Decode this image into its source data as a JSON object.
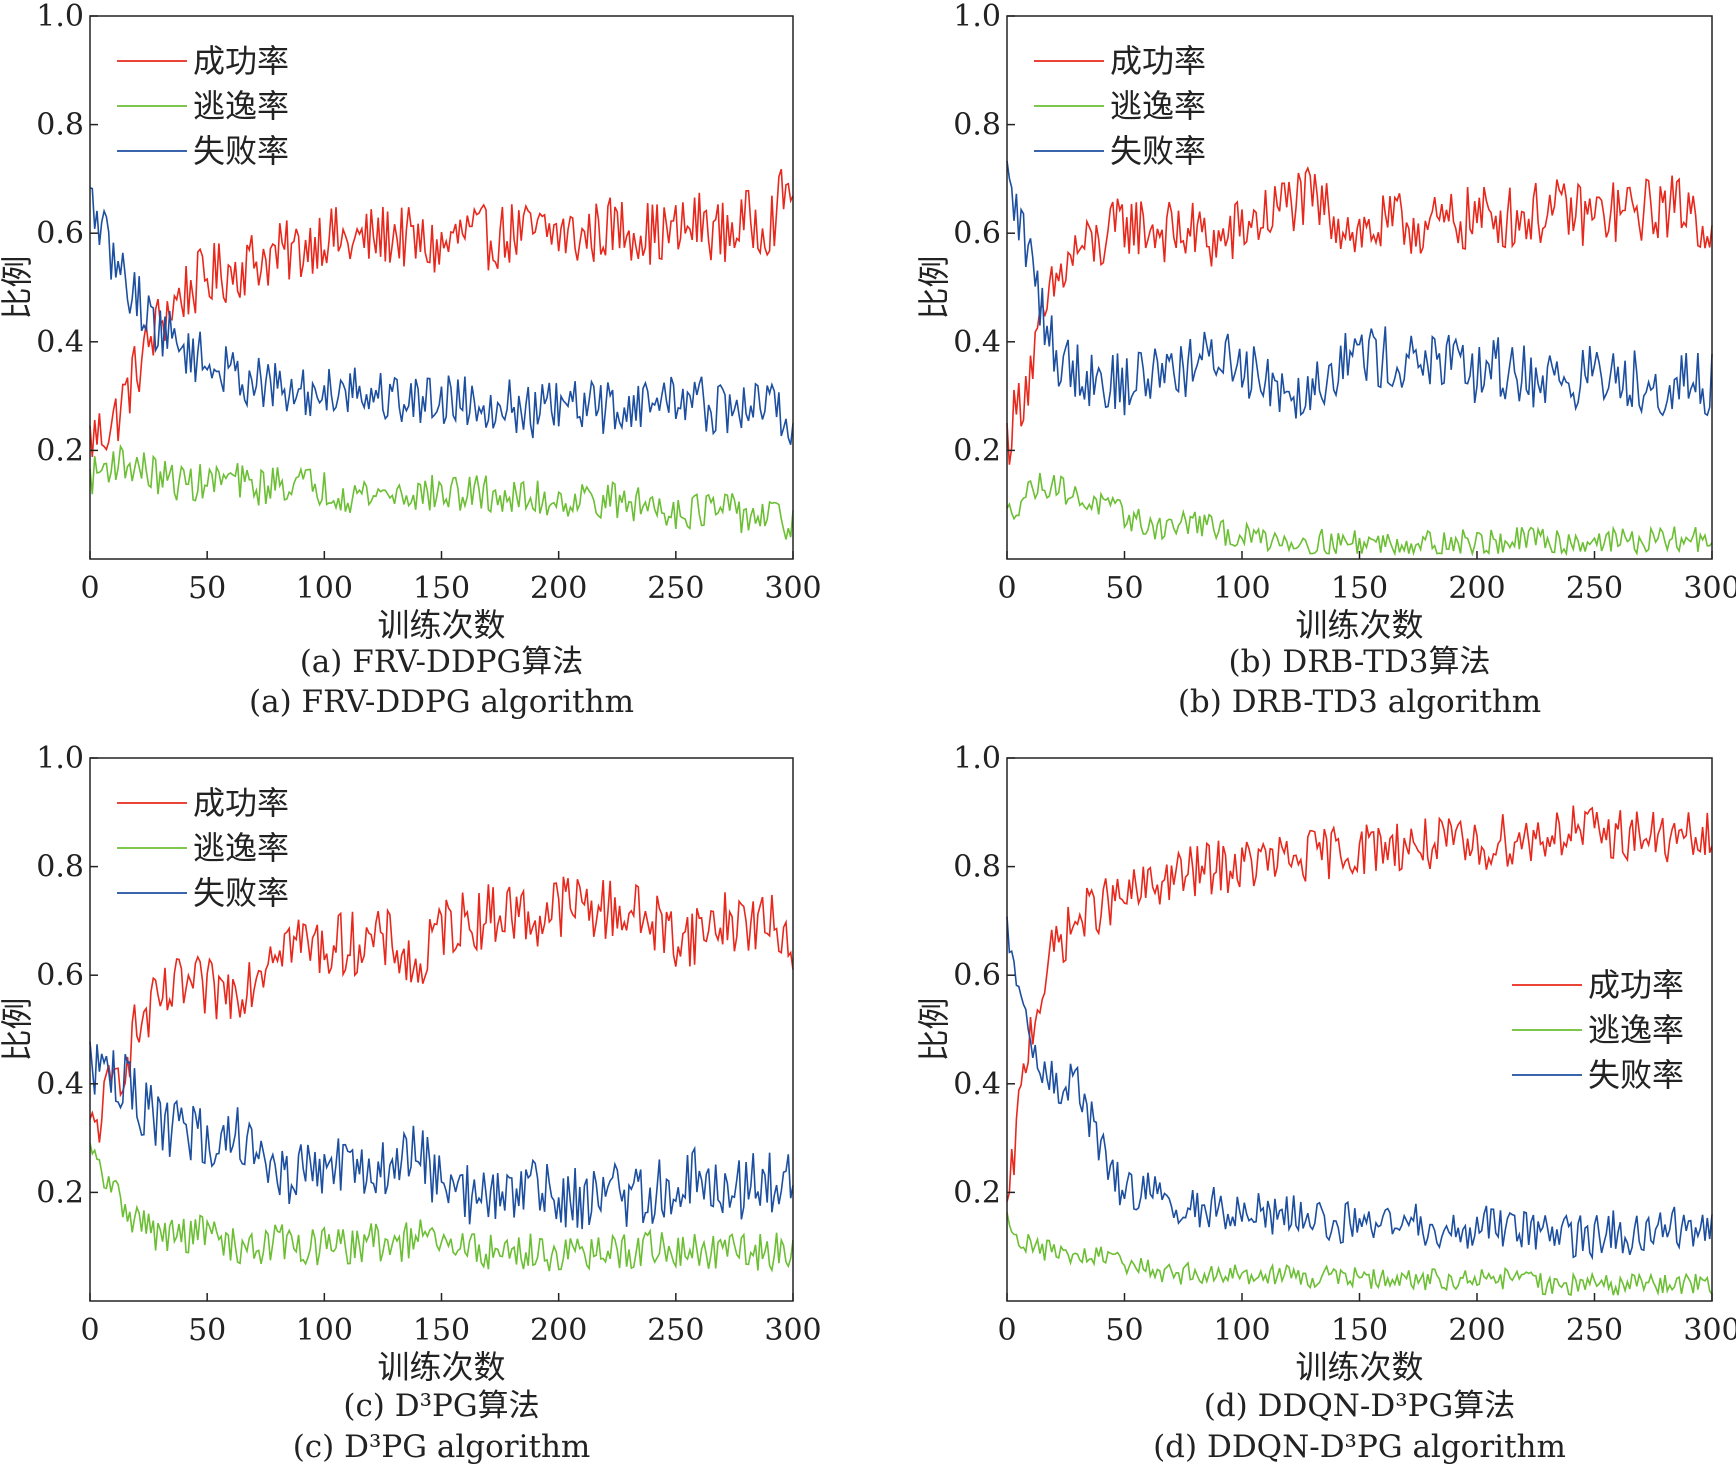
{
  "colors": {
    "success": "#e8281c",
    "escape": "#6cbf34",
    "failure": "#1d4fa0",
    "axis": "#222222"
  },
  "chart_data": [
    {
      "type": "line",
      "caption_cn": "(a) FRV-DDPG算法",
      "caption_en": "(a) FRV-DDPG algorithm",
      "xlabel": "训练次数",
      "ylabel": "比例",
      "xlim": [
        0,
        300
      ],
      "ylim": [
        0,
        1.0
      ],
      "xticks": [
        "0",
        "50",
        "100",
        "150",
        "200",
        "250",
        "300"
      ],
      "yticks": [
        "0.2",
        "0.4",
        "0.6",
        "0.8",
        "1.0"
      ],
      "legend_position": "top-left",
      "series": [
        {
          "name": "成功率",
          "color": "#e8281c",
          "x": [
            0,
            10,
            20,
            30,
            40,
            50,
            60,
            70,
            80,
            90,
            100,
            110,
            120,
            130,
            140,
            150,
            160,
            170,
            180,
            190,
            200,
            210,
            220,
            230,
            240,
            250,
            260,
            270,
            280,
            290,
            300
          ],
          "y": [
            0.22,
            0.25,
            0.35,
            0.44,
            0.49,
            0.52,
            0.53,
            0.55,
            0.56,
            0.57,
            0.6,
            0.58,
            0.59,
            0.6,
            0.58,
            0.57,
            0.6,
            0.59,
            0.6,
            0.6,
            0.6,
            0.59,
            0.61,
            0.61,
            0.6,
            0.6,
            0.62,
            0.6,
            0.62,
            0.62,
            0.7
          ]
        },
        {
          "name": "逃逸率",
          "color": "#6cbf34",
          "x": [
            0,
            10,
            20,
            30,
            40,
            50,
            60,
            70,
            80,
            90,
            100,
            110,
            120,
            130,
            140,
            150,
            160,
            170,
            180,
            190,
            200,
            210,
            220,
            230,
            240,
            250,
            260,
            270,
            280,
            290,
            300
          ],
          "y": [
            0.15,
            0.18,
            0.17,
            0.15,
            0.14,
            0.14,
            0.15,
            0.13,
            0.14,
            0.14,
            0.13,
            0.12,
            0.12,
            0.12,
            0.12,
            0.12,
            0.12,
            0.12,
            0.11,
            0.11,
            0.11,
            0.11,
            0.11,
            0.1,
            0.1,
            0.09,
            0.09,
            0.09,
            0.08,
            0.08,
            0.06
          ]
        },
        {
          "name": "失败率",
          "color": "#1d4fa0",
          "x": [
            0,
            10,
            20,
            30,
            40,
            50,
            60,
            70,
            80,
            90,
            100,
            110,
            120,
            130,
            140,
            150,
            160,
            170,
            180,
            190,
            200,
            210,
            220,
            230,
            240,
            250,
            260,
            270,
            280,
            290,
            300
          ],
          "y": [
            0.66,
            0.55,
            0.48,
            0.42,
            0.39,
            0.36,
            0.34,
            0.33,
            0.31,
            0.3,
            0.31,
            0.32,
            0.3,
            0.3,
            0.29,
            0.3,
            0.29,
            0.29,
            0.28,
            0.27,
            0.28,
            0.28,
            0.28,
            0.28,
            0.29,
            0.3,
            0.29,
            0.27,
            0.28,
            0.29,
            0.24
          ]
        }
      ]
    },
    {
      "type": "line",
      "caption_cn": "(b) DRB-TD3算法",
      "caption_en": "(b) DRB-TD3 algorithm",
      "xlabel": "训练次数",
      "ylabel": "比例",
      "xlim": [
        0,
        300
      ],
      "ylim": [
        0,
        1.0
      ],
      "xticks": [
        "0",
        "50",
        "100",
        "150",
        "200",
        "250",
        "300"
      ],
      "yticks": [
        "0.2",
        "0.4",
        "0.6",
        "0.8",
        "1.0"
      ],
      "legend_position": "top-left",
      "series": [
        {
          "name": "成功率",
          "color": "#e8281c",
          "x": [
            0,
            10,
            20,
            30,
            40,
            50,
            60,
            70,
            80,
            90,
            100,
            110,
            120,
            130,
            140,
            150,
            160,
            170,
            180,
            190,
            200,
            210,
            220,
            230,
            240,
            250,
            260,
            270,
            280,
            290,
            300
          ],
          "y": [
            0.22,
            0.35,
            0.5,
            0.57,
            0.58,
            0.62,
            0.61,
            0.6,
            0.6,
            0.58,
            0.61,
            0.63,
            0.66,
            0.66,
            0.63,
            0.6,
            0.61,
            0.62,
            0.61,
            0.62,
            0.63,
            0.63,
            0.63,
            0.64,
            0.64,
            0.63,
            0.64,
            0.64,
            0.65,
            0.65,
            0.6
          ]
        },
        {
          "name": "逃逸率",
          "color": "#6cbf34",
          "x": [
            0,
            10,
            20,
            30,
            40,
            50,
            60,
            70,
            80,
            90,
            100,
            110,
            120,
            130,
            140,
            150,
            160,
            170,
            180,
            190,
            200,
            210,
            220,
            230,
            240,
            250,
            260,
            270,
            280,
            290,
            300
          ],
          "y": [
            0.08,
            0.13,
            0.14,
            0.11,
            0.1,
            0.08,
            0.06,
            0.06,
            0.07,
            0.05,
            0.04,
            0.04,
            0.035,
            0.03,
            0.03,
            0.03,
            0.03,
            0.03,
            0.03,
            0.03,
            0.03,
            0.03,
            0.035,
            0.035,
            0.03,
            0.035,
            0.035,
            0.03,
            0.035,
            0.035,
            0.04
          ]
        },
        {
          "name": "失败率",
          "color": "#1d4fa0",
          "x": [
            0,
            10,
            20,
            30,
            40,
            50,
            60,
            70,
            80,
            90,
            100,
            110,
            120,
            130,
            140,
            150,
            160,
            170,
            180,
            190,
            200,
            210,
            220,
            230,
            240,
            250,
            260,
            270,
            280,
            290,
            300
          ],
          "y": [
            0.7,
            0.55,
            0.38,
            0.35,
            0.33,
            0.32,
            0.34,
            0.36,
            0.35,
            0.38,
            0.36,
            0.34,
            0.31,
            0.32,
            0.36,
            0.38,
            0.37,
            0.36,
            0.37,
            0.35,
            0.34,
            0.35,
            0.34,
            0.33,
            0.33,
            0.34,
            0.33,
            0.33,
            0.32,
            0.32,
            0.32
          ]
        }
      ]
    },
    {
      "type": "line",
      "caption_cn": "(c) D³PG算法",
      "caption_en": "(c)  D³PG algorithm",
      "xlabel": "训练次数",
      "ylabel": "比例",
      "xlim": [
        0,
        300
      ],
      "ylim": [
        0,
        1.0
      ],
      "xticks": [
        "0",
        "50",
        "100",
        "150",
        "200",
        "250",
        "300"
      ],
      "yticks": [
        "0.2",
        "0.4",
        "0.6",
        "0.8",
        "1.0"
      ],
      "legend_position": "top-left",
      "series": [
        {
          "name": "成功率",
          "color": "#e8281c",
          "x": [
            0,
            10,
            20,
            30,
            40,
            50,
            60,
            70,
            80,
            90,
            100,
            110,
            120,
            130,
            140,
            150,
            160,
            170,
            180,
            190,
            200,
            210,
            220,
            230,
            240,
            250,
            260,
            270,
            280,
            290,
            300
          ],
          "y": [
            0.3,
            0.4,
            0.5,
            0.55,
            0.58,
            0.57,
            0.57,
            0.6,
            0.67,
            0.66,
            0.65,
            0.66,
            0.66,
            0.66,
            0.6,
            0.69,
            0.7,
            0.71,
            0.72,
            0.7,
            0.73,
            0.73,
            0.72,
            0.72,
            0.7,
            0.67,
            0.68,
            0.7,
            0.7,
            0.69,
            0.67
          ]
        },
        {
          "name": "逃逸率",
          "color": "#6cbf34",
          "x": [
            0,
            10,
            20,
            30,
            40,
            50,
            60,
            70,
            80,
            90,
            100,
            110,
            120,
            130,
            140,
            150,
            160,
            170,
            180,
            190,
            200,
            210,
            220,
            230,
            240,
            250,
            260,
            270,
            280,
            290,
            300
          ],
          "y": [
            0.27,
            0.2,
            0.15,
            0.12,
            0.12,
            0.13,
            0.1,
            0.1,
            0.11,
            0.1,
            0.1,
            0.1,
            0.11,
            0.1,
            0.12,
            0.1,
            0.1,
            0.09,
            0.09,
            0.09,
            0.09,
            0.08,
            0.09,
            0.09,
            0.1,
            0.09,
            0.09,
            0.09,
            0.09,
            0.09,
            0.1
          ]
        },
        {
          "name": "失败率",
          "color": "#1d4fa0",
          "x": [
            0,
            10,
            20,
            30,
            40,
            50,
            60,
            70,
            80,
            90,
            100,
            110,
            120,
            130,
            140,
            150,
            160,
            170,
            180,
            190,
            200,
            210,
            220,
            230,
            240,
            250,
            260,
            270,
            280,
            290,
            300
          ],
          "y": [
            0.44,
            0.42,
            0.37,
            0.32,
            0.31,
            0.3,
            0.31,
            0.3,
            0.23,
            0.24,
            0.25,
            0.24,
            0.24,
            0.24,
            0.28,
            0.21,
            0.2,
            0.2,
            0.19,
            0.21,
            0.19,
            0.19,
            0.2,
            0.19,
            0.2,
            0.22,
            0.23,
            0.21,
            0.21,
            0.22,
            0.23
          ]
        }
      ]
    },
    {
      "type": "line",
      "caption_cn": "(d) DDQN-D³PG算法",
      "caption_en": "(d) DDQN-D³PG algorithm",
      "xlabel": "训练次数",
      "ylabel": "比例",
      "xlim": [
        0,
        300
      ],
      "ylim": [
        0,
        1.0
      ],
      "xticks": [
        "0",
        "50",
        "100",
        "150",
        "200",
        "250",
        "300"
      ],
      "yticks": [
        "0.2",
        "0.4",
        "0.6",
        "0.8",
        "1.0"
      ],
      "legend_position": "center-right",
      "series": [
        {
          "name": "成功率",
          "color": "#e8281c",
          "x": [
            0,
            5,
            10,
            20,
            30,
            40,
            50,
            60,
            70,
            80,
            90,
            100,
            110,
            120,
            130,
            140,
            150,
            160,
            170,
            180,
            190,
            200,
            210,
            220,
            230,
            240,
            250,
            260,
            270,
            280,
            290,
            300
          ],
          "y": [
            0.15,
            0.35,
            0.5,
            0.65,
            0.7,
            0.73,
            0.74,
            0.76,
            0.78,
            0.79,
            0.8,
            0.8,
            0.81,
            0.81,
            0.82,
            0.83,
            0.83,
            0.84,
            0.84,
            0.84,
            0.84,
            0.83,
            0.85,
            0.85,
            0.86,
            0.87,
            0.86,
            0.86,
            0.86,
            0.85,
            0.85,
            0.85
          ]
        },
        {
          "name": "逃逸率",
          "color": "#6cbf34",
          "x": [
            0,
            5,
            10,
            20,
            30,
            40,
            50,
            60,
            70,
            80,
            90,
            100,
            110,
            120,
            130,
            140,
            150,
            160,
            170,
            180,
            190,
            200,
            210,
            220,
            230,
            240,
            250,
            260,
            270,
            280,
            290,
            300
          ],
          "y": [
            0.15,
            0.12,
            0.1,
            0.09,
            0.08,
            0.08,
            0.07,
            0.06,
            0.05,
            0.05,
            0.05,
            0.05,
            0.05,
            0.05,
            0.04,
            0.05,
            0.04,
            0.04,
            0.04,
            0.04,
            0.04,
            0.04,
            0.04,
            0.04,
            0.03,
            0.03,
            0.03,
            0.03,
            0.03,
            0.03,
            0.03,
            0.03
          ]
        },
        {
          "name": "失败率",
          "color": "#1d4fa0",
          "x": [
            0,
            5,
            10,
            20,
            30,
            40,
            50,
            60,
            70,
            80,
            90,
            100,
            110,
            120,
            130,
            140,
            150,
            160,
            170,
            180,
            190,
            200,
            210,
            220,
            230,
            240,
            250,
            260,
            270,
            280,
            290,
            300
          ],
          "y": [
            0.68,
            0.6,
            0.45,
            0.4,
            0.4,
            0.28,
            0.2,
            0.2,
            0.17,
            0.17,
            0.17,
            0.17,
            0.16,
            0.16,
            0.16,
            0.14,
            0.15,
            0.14,
            0.14,
            0.14,
            0.13,
            0.14,
            0.13,
            0.13,
            0.12,
            0.12,
            0.12,
            0.13,
            0.12,
            0.13,
            0.14,
            0.14
          ]
        }
      ]
    }
  ]
}
